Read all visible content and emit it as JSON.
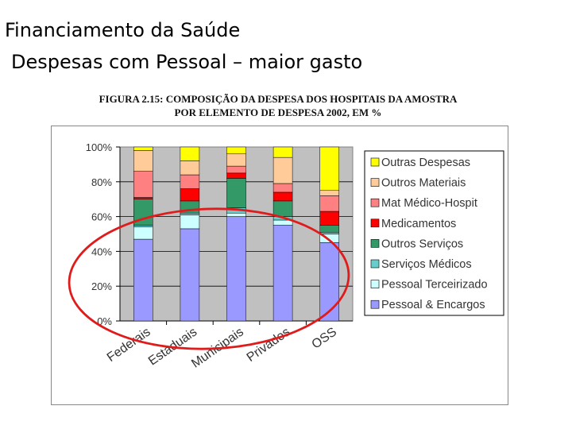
{
  "slide": {
    "title": "Financiamento da Saúde",
    "subtitle": "Despesas com Pessoal – maior gasto"
  },
  "figure": {
    "caption_line1": "FIGURA 2.15: COMPOSIÇÃO DA DESPESA DOS HOSPITAIS DA AMOSTRA",
    "caption_line2": "POR ELEMENTO DE DESPESA 2002, EM %"
  },
  "chart_data": {
    "type": "bar",
    "stacked": true,
    "categories": [
      "Federais",
      "Estaduais",
      "Municipais",
      "Privados",
      "OSS"
    ],
    "yticks": [
      "0%",
      "20%",
      "40%",
      "60%",
      "80%",
      "100%"
    ],
    "ylim": [
      0,
      100
    ],
    "grid": true,
    "legend_position": "right",
    "plot_background": "#c0c0c0",
    "series": [
      {
        "name": "Pessoal & Encargos",
        "color": "#9999ff",
        "values": [
          47,
          53,
          60,
          55,
          45
        ]
      },
      {
        "name": "Pessoal Terceirizado",
        "color": "#ccffff",
        "values": [
          7,
          8,
          2,
          3,
          5
        ]
      },
      {
        "name": "Serviços Médicos",
        "color": "#66cccc",
        "values": [
          1,
          1,
          3,
          2,
          1
        ]
      },
      {
        "name": "Outros Serviços",
        "color": "#339966",
        "values": [
          15,
          7,
          17,
          9,
          4
        ]
      },
      {
        "name": "Medicamentos",
        "color": "#ff0000",
        "values": [
          1,
          7,
          3,
          5,
          8
        ]
      },
      {
        "name": "Mat Médico-Hospit",
        "color": "#ff8080",
        "values": [
          15,
          8,
          4,
          5,
          9
        ]
      },
      {
        "name": "Outros Materiais",
        "color": "#ffcc99",
        "values": [
          12,
          8,
          7,
          15,
          3
        ]
      },
      {
        "name": "Outras Despesas",
        "color": "#ffff00",
        "values": [
          2,
          8,
          4,
          6,
          25
        ]
      }
    ],
    "legend_order": [
      "Outras Despesas",
      "Outros Materiais",
      "Mat Médico-Hospit",
      "Medicamentos",
      "Outros Serviços",
      "Serviços Médicos",
      "Pessoal Terceirizado",
      "Pessoal & Encargos"
    ]
  }
}
